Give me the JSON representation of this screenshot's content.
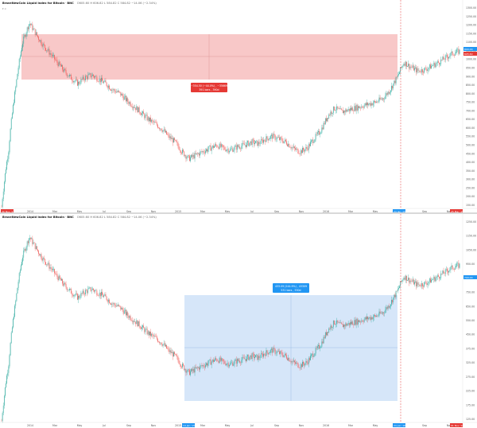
{
  "colors": {
    "up": "#26a69a",
    "down": "#ef5350",
    "red_zone": "#f6b6b6",
    "blue_zone": "#cfe2f8",
    "dash": "#e65555",
    "axis_text": "#555555",
    "tag_red": "#e53935",
    "tag_blue": "#2196f3"
  },
  "panels": [
    {
      "id": "top",
      "title": "BraveNewCoin Liquid Index for Bitcoin",
      "symbol": "BNC",
      "ohlc": "O605.60 H 606.82 L 584.82 C 584.82 −14.06 (−2.34%)",
      "subtitle": "▾ ∞",
      "measure_label_1": "−354.50 (−44.0%) , −35669",
      "measure_label_2": "391 bars , 390d",
      "x_tags": [
        "30 Nov '13",
        "24 Jan '15"
      ],
      "end_tag": "25 Mar '15",
      "price_tags": [
        "800.00",
        "605.60"
      ]
    },
    {
      "id": "bottom",
      "title": "BraveNewCoin Liquid Index for Bitcoin",
      "symbol": "BNC",
      "ohlc": "O605.60 H 606.82 L 584.82 C 584.82 −14.06 (−2.34%)",
      "subtitle": "",
      "measure_label_1": "433.09 (244.9%) , 43309",
      "measure_label_2": "531 bars , 530d",
      "x_tags": [
        "14 Jan '15",
        "24 Jun '16"
      ],
      "end_tag": "01 Nov '16",
      "price_tags": [
        "700.00"
      ]
    }
  ],
  "chart_data": {
    "type": "candlestick",
    "x_ticks": [
      "2014",
      "Mar",
      "May",
      "Jul",
      "Sep",
      "Nov",
      "2015",
      "Mar",
      "May",
      "Jul",
      "Sep",
      "Nov",
      "2016",
      "Mar",
      "May",
      "Jul",
      "Sep",
      "Nov"
    ],
    "y_ticks_top": [
      "1300.00",
      "1250.00",
      "1200.00",
      "1150.00",
      "1100.00",
      "1050.00",
      "1000.00",
      "950.00",
      "900.00",
      "850.00",
      "800.00",
      "750.00",
      "700.00",
      "650.00",
      "600.00",
      "550.00",
      "500.00",
      "450.00",
      "400.00",
      "350.00",
      "300.00",
      "250.00",
      "200.00",
      "150.00"
    ],
    "y_ticks_bottom": [
      "1250.00",
      "1150.00",
      "1050.00",
      "950.00",
      "850.00",
      "750.00",
      "650.00",
      "550.00",
      "450.00",
      "375.00",
      "325.00",
      "275.00",
      "225.00",
      "175.00",
      "125.00"
    ],
    "ylim": [
      130,
      1320
    ],
    "series": [
      {
        "values": [
          130,
          250,
          520,
          900,
          1150,
          1000,
          880,
          800,
          720,
          650,
          600,
          560,
          600,
          620,
          590,
          560,
          520,
          500,
          460,
          430,
          400,
          370,
          350,
          330,
          300,
          280,
          250,
          230,
          240,
          250,
          260,
          270,
          260,
          255,
          265,
          270,
          280,
          275,
          290,
          300,
          290,
          280,
          260,
          250,
          260,
          290,
          320,
          380,
          420,
          400,
          410,
          420,
          430,
          440,
          450,
          470,
          520,
          600,
          720,
          680,
          650,
          660,
          690,
          720,
          760,
          800,
          820
        ]
      }
    ]
  }
}
